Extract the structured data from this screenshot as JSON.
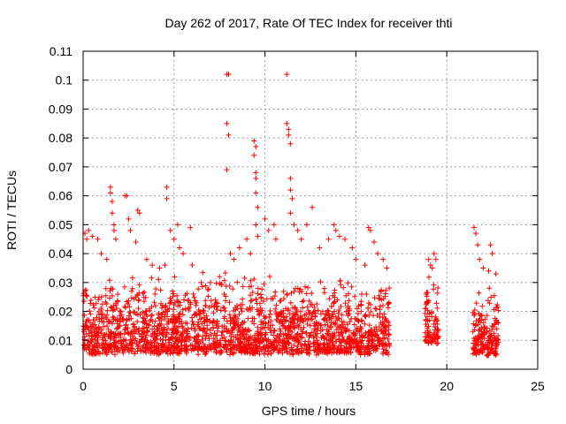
{
  "chart_data": {
    "type": "scatter",
    "title": "Day 262 of 2017, Rate Of TEC Index for receiver thti",
    "xlabel": "GPS time / hours",
    "ylabel": "ROTI / TECUs",
    "xlim": [
      0,
      25
    ],
    "ylim": [
      0,
      0.11
    ],
    "xticks": [
      0,
      5,
      10,
      15,
      20,
      25
    ],
    "xtick_labels": [
      "0",
      "5",
      "10",
      "15",
      "20",
      "25"
    ],
    "yticks": [
      0,
      0.01,
      0.02,
      0.03,
      0.04,
      0.05,
      0.06,
      0.07,
      0.08,
      0.09,
      0.1,
      0.11
    ],
    "ytick_labels": [
      "0",
      "0.01",
      "0.02",
      "0.03",
      "0.04",
      "0.05",
      "0.06",
      "0.07",
      "0.08",
      "0.09",
      "0.1",
      "0.11"
    ],
    "grid": true,
    "marker": "+",
    "color": "#ff0000",
    "series": [
      {
        "name": "ROTI",
        "points": [
          [
            0.1,
            0.047
          ],
          [
            0.2,
            0.045
          ],
          [
            0.3,
            0.048
          ],
          [
            0.5,
            0.046
          ],
          [
            0.8,
            0.045
          ],
          [
            1.0,
            0.04
          ],
          [
            1.3,
            0.038
          ],
          [
            1.5,
            0.063
          ],
          [
            1.5,
            0.061
          ],
          [
            1.6,
            0.058
          ],
          [
            1.6,
            0.054
          ],
          [
            1.7,
            0.05
          ],
          [
            1.7,
            0.048
          ],
          [
            1.8,
            0.045
          ],
          [
            2.3,
            0.06
          ],
          [
            2.4,
            0.06
          ],
          [
            2.5,
            0.052
          ],
          [
            2.6,
            0.048
          ],
          [
            3.0,
            0.055
          ],
          [
            3.1,
            0.054
          ],
          [
            2.9,
            0.044
          ],
          [
            3.5,
            0.038
          ],
          [
            3.8,
            0.036
          ],
          [
            4.2,
            0.035
          ],
          [
            4.5,
            0.036
          ],
          [
            4.6,
            0.063
          ],
          [
            4.6,
            0.059
          ],
          [
            4.8,
            0.048
          ],
          [
            5.0,
            0.045
          ],
          [
            5.2,
            0.05
          ],
          [
            5.3,
            0.042
          ],
          [
            5.5,
            0.04
          ],
          [
            5.9,
            0.049
          ],
          [
            6.0,
            0.036
          ],
          [
            6.5,
            0.03
          ],
          [
            7.0,
            0.03
          ],
          [
            7.5,
            0.032
          ],
          [
            7.9,
            0.102
          ],
          [
            8.0,
            0.102
          ],
          [
            7.9,
            0.085
          ],
          [
            8.0,
            0.081
          ],
          [
            7.9,
            0.069
          ],
          [
            8.1,
            0.04
          ],
          [
            8.3,
            0.038
          ],
          [
            8.6,
            0.042
          ],
          [
            9.0,
            0.045
          ],
          [
            9.2,
            0.04
          ],
          [
            9.4,
            0.079
          ],
          [
            9.5,
            0.077
          ],
          [
            9.4,
            0.074
          ],
          [
            9.5,
            0.068
          ],
          [
            9.5,
            0.066
          ],
          [
            9.5,
            0.061
          ],
          [
            9.6,
            0.056
          ],
          [
            9.5,
            0.05
          ],
          [
            9.6,
            0.046
          ],
          [
            10.0,
            0.052
          ],
          [
            10.2,
            0.048
          ],
          [
            10.5,
            0.05
          ],
          [
            10.6,
            0.045
          ],
          [
            11.2,
            0.102
          ],
          [
            11.2,
            0.085
          ],
          [
            11.3,
            0.083
          ],
          [
            11.3,
            0.081
          ],
          [
            11.4,
            0.078
          ],
          [
            11.4,
            0.066
          ],
          [
            11.4,
            0.062
          ],
          [
            11.5,
            0.059
          ],
          [
            11.4,
            0.054
          ],
          [
            11.6,
            0.05
          ],
          [
            11.8,
            0.048
          ],
          [
            12.0,
            0.045
          ],
          [
            12.3,
            0.05
          ],
          [
            12.6,
            0.056
          ],
          [
            13.0,
            0.042
          ],
          [
            13.5,
            0.045
          ],
          [
            13.8,
            0.05
          ],
          [
            13.9,
            0.048
          ],
          [
            14.1,
            0.046
          ],
          [
            14.4,
            0.045
          ],
          [
            14.8,
            0.042
          ],
          [
            15.0,
            0.038
          ],
          [
            15.5,
            0.036
          ],
          [
            15.7,
            0.049
          ],
          [
            15.8,
            0.048
          ],
          [
            16.0,
            0.044
          ],
          [
            16.2,
            0.04
          ],
          [
            16.5,
            0.038
          ],
          [
            16.7,
            0.035
          ],
          [
            19.0,
            0.038
          ],
          [
            19.1,
            0.036
          ],
          [
            19.2,
            0.035
          ],
          [
            19.3,
            0.04
          ],
          [
            19.4,
            0.038
          ],
          [
            21.5,
            0.049
          ],
          [
            21.6,
            0.047
          ],
          [
            21.7,
            0.043
          ],
          [
            21.8,
            0.038
          ],
          [
            22.0,
            0.035
          ],
          [
            22.3,
            0.034
          ],
          [
            22.4,
            0.043
          ],
          [
            22.5,
            0.04
          ],
          [
            22.7,
            0.033
          ]
        ],
        "dense_segments": [
          {
            "x": [
              0.0,
              16.85
            ],
            "y": [
              0.003,
              0.034
            ]
          },
          {
            "x": [
              18.8,
              19.55
            ],
            "y": [
              0.007,
              0.033
            ]
          },
          {
            "x": [
              21.4,
              22.85
            ],
            "y": [
              0.003,
              0.03
            ]
          }
        ]
      }
    ]
  }
}
